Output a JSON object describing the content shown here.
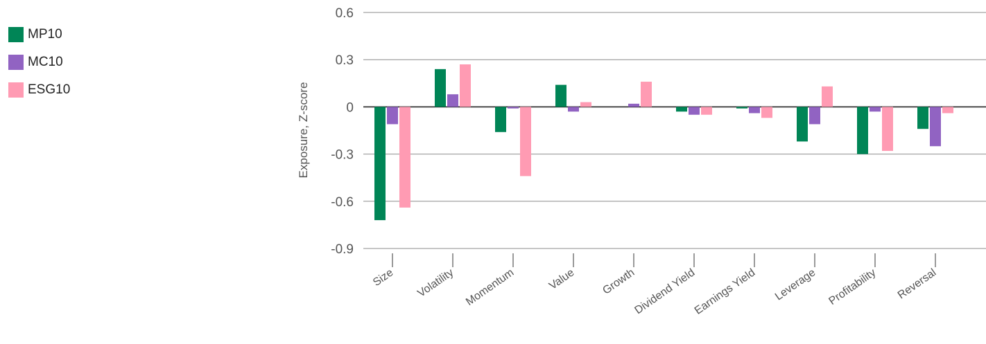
{
  "chart_data": {
    "type": "bar",
    "title": "",
    "xlabel": "",
    "ylabel": "Exposure, Z-score",
    "ylim": [
      -0.9,
      0.6
    ],
    "yticks": [
      0.6,
      0.3,
      0,
      -0.3,
      -0.6,
      -0.9
    ],
    "ytick_labels": [
      "0.6",
      "0.3",
      "0",
      "-0.3",
      "-0.6",
      "-0.9"
    ],
    "categories": [
      "Size",
      "Volatility",
      "Momentum",
      "Value",
      "Growth",
      "Dividend Yield",
      "Earnings Yield",
      "Leverage",
      "Profitability",
      "Reversal"
    ],
    "series": [
      {
        "name": "MP10",
        "color": "#008556",
        "values": [
          -0.72,
          0.24,
          -0.16,
          0.14,
          0.0,
          -0.03,
          -0.01,
          -0.22,
          -0.3,
          -0.14
        ]
      },
      {
        "name": "MC10",
        "color": "#9163c2",
        "values": [
          -0.11,
          0.08,
          -0.01,
          -0.03,
          0.02,
          -0.05,
          -0.04,
          -0.11,
          -0.03,
          -0.25
        ]
      },
      {
        "name": "ESG10",
        "color": "#ff9bb3",
        "values": [
          -0.64,
          0.27,
          -0.44,
          0.03,
          0.16,
          -0.05,
          -0.07,
          0.13,
          -0.28,
          -0.04
        ]
      }
    ],
    "grid": true,
    "legend": "top-left"
  }
}
